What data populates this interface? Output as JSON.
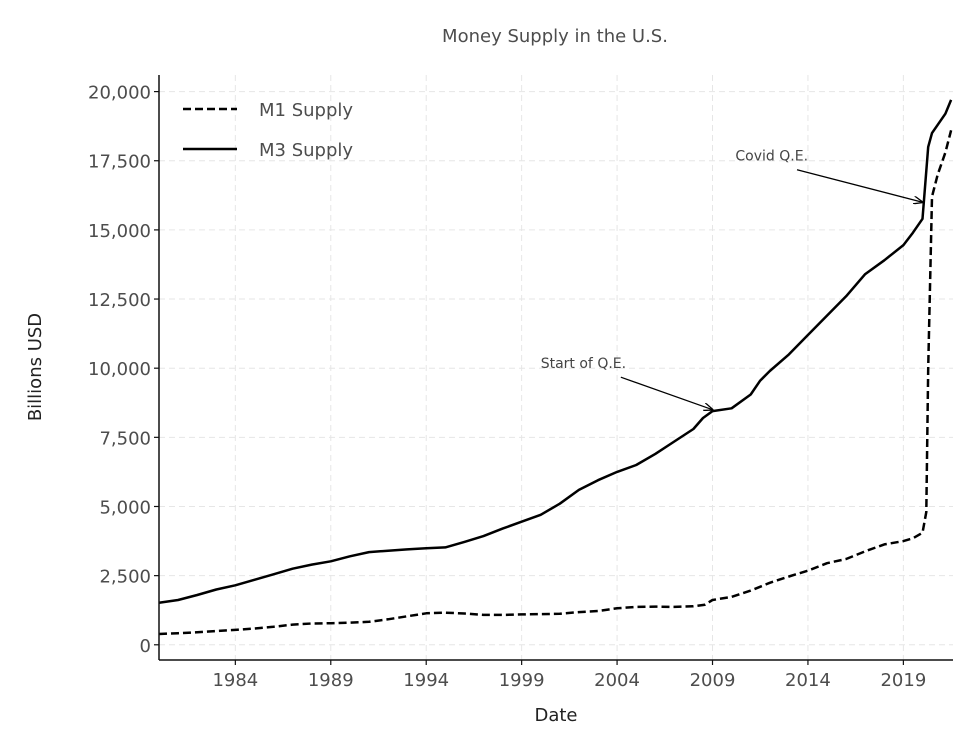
{
  "chart_data": {
    "type": "line",
    "title": "Money Supply in the U.S.",
    "xlabel": "Date",
    "ylabel": "Billions USD",
    "xlim": [
      1980,
      2021.6
    ],
    "ylim": [
      -550,
      20600
    ],
    "x_ticks": [
      1984,
      1989,
      1994,
      1999,
      2004,
      2009,
      2014,
      2019
    ],
    "y_ticks": [
      0,
      2500,
      5000,
      7500,
      10000,
      12500,
      15000,
      17500,
      20000
    ],
    "y_tick_labels": [
      "0",
      "2,500",
      "5,000",
      "7,500",
      "10,000",
      "12,500",
      "15,000",
      "17,500",
      "20,000"
    ],
    "grid": true,
    "legend_position": "top-left",
    "series": [
      {
        "name": "M1 Supply",
        "style": "dashed",
        "color": "#000000",
        "x": [
          1980,
          1981,
          1982,
          1983,
          1984,
          1985,
          1986,
          1987,
          1988,
          1989,
          1990,
          1991,
          1992,
          1993,
          1994,
          1995,
          1996,
          1997,
          1998,
          1999,
          2000,
          2001,
          2002,
          2003,
          2004,
          2005,
          2006,
          2007,
          2008,
          2008.6,
          2009,
          2010,
          2011,
          2012,
          2013,
          2014,
          2015,
          2016,
          2017,
          2018,
          2019,
          2019.5,
          2020.0,
          2020.2,
          2020.3,
          2020.5,
          2020.8,
          2021.2,
          2021.5
        ],
        "values": [
          390,
          420,
          450,
          500,
          540,
          590,
          650,
          730,
          770,
          780,
          800,
          830,
          920,
          1030,
          1140,
          1160,
          1130,
          1080,
          1080,
          1100,
          1110,
          1120,
          1180,
          1220,
          1320,
          1370,
          1380,
          1370,
          1390,
          1450,
          1620,
          1730,
          1960,
          2240,
          2470,
          2680,
          2950,
          3100,
          3380,
          3630,
          3750,
          3850,
          4050,
          4800,
          10000,
          16200,
          17000,
          17800,
          18600
        ]
      },
      {
        "name": "M3 Supply",
        "style": "solid",
        "color": "#000000",
        "x": [
          1980,
          1981,
          1982,
          1983,
          1984,
          1985,
          1986,
          1987,
          1988,
          1989,
          1990,
          1991,
          1992,
          1993,
          1994,
          1995,
          1996,
          1997,
          1998,
          1999,
          2000,
          2001,
          2002,
          2003,
          2004,
          2005,
          2006,
          2007,
          2008,
          2008.5,
          2009,
          2010,
          2011,
          2011.5,
          2012,
          2013,
          2014,
          2015,
          2016,
          2017,
          2018,
          2019,
          2019.5,
          2020.0,
          2020.3,
          2020.5,
          2020.8,
          2021.2,
          2021.5
        ],
        "values": [
          1520,
          1620,
          1800,
          2000,
          2150,
          2350,
          2550,
          2750,
          2900,
          3020,
          3200,
          3350,
          3400,
          3450,
          3490,
          3520,
          3720,
          3930,
          4200,
          4450,
          4700,
          5100,
          5600,
          5950,
          6250,
          6500,
          6900,
          7350,
          7800,
          8200,
          8450,
          8550,
          9050,
          9550,
          9900,
          10500,
          11200,
          11900,
          12600,
          13400,
          13900,
          14450,
          14900,
          15400,
          18000,
          18500,
          18800,
          19200,
          19700
        ]
      }
    ],
    "annotations": [
      {
        "text": "Start of Q.E.",
        "text_at": [
          2000.0,
          10000
        ],
        "point_to": [
          2009.0,
          8500
        ]
      },
      {
        "text": "Covid Q.E.",
        "text_at": [
          2010.2,
          17500
        ],
        "point_to": [
          2020.0,
          16000
        ]
      }
    ]
  }
}
